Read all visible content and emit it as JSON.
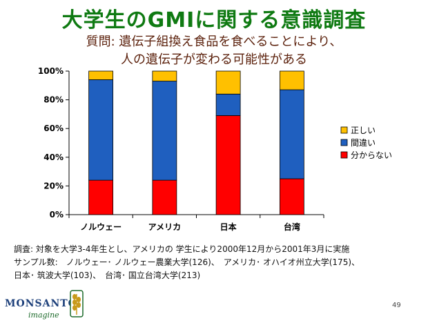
{
  "slide": {
    "title": "大学生のGMIに関する意識調査",
    "subtitle_line1": "質問: 遺伝子組換え食品を食べることにより、",
    "subtitle_line2": "人の遺伝子が変わる可能性がある",
    "notes": [
      "調査: 対象を大学3-4年生とし、アメリカの 学生により2000年12月から2001年3月に実施",
      "サンプル数:　ノルウェー･ ノルウェー農業大学(126)、　アメリカ･ オハイオ州立大学(175)、",
      "日本･ 筑波大学(103)、　台湾･ 国立台湾大学(213)"
    ],
    "logo_text": "MONSANTO",
    "logo_sub": "imagine",
    "page_number": "49"
  },
  "chart_data": {
    "type": "bar",
    "stacked": true,
    "categories": [
      "ノルウェー",
      "アメリカ",
      "日本",
      "台湾"
    ],
    "y_ticks": [
      "0%",
      "20%",
      "40%",
      "60%",
      "80%",
      "100%"
    ],
    "ylim": [
      0,
      100
    ],
    "series": [
      {
        "name": "分からない",
        "color": "#ff0000",
        "values": [
          24,
          24,
          69,
          25
        ]
      },
      {
        "name": "間違い",
        "color": "#1f5fbf",
        "values": [
          70,
          69,
          15,
          62
        ]
      },
      {
        "name": "正しい",
        "color": "#ffc000",
        "values": [
          6,
          7,
          16,
          13
        ]
      }
    ],
    "legend_order": [
      "正しい",
      "間違い",
      "分からない"
    ],
    "legend_position": "right",
    "grid": false
  }
}
